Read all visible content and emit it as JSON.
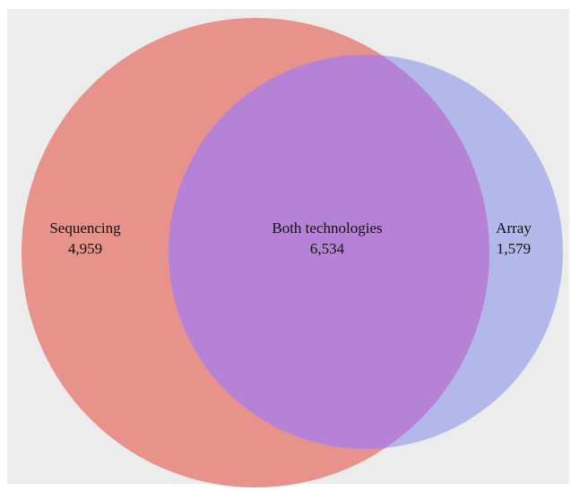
{
  "chart_data": {
    "type": "venn",
    "sets": [
      {
        "name": "Sequencing",
        "unique_count": "4,959",
        "color": "#e7928a"
      },
      {
        "name": "Array",
        "unique_count": "1,579",
        "color": "#b3b8ea"
      }
    ],
    "intersection": {
      "label": "Both technologies",
      "count": "6,534",
      "color": "#b682d6"
    },
    "background_color": "#ececec"
  }
}
